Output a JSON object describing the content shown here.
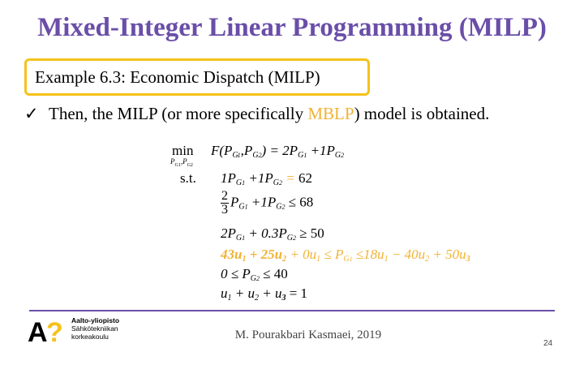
{
  "slide": {
    "title": "Mixed-Integer Linear Programming (MILP)",
    "example_label": "Example 6.3: Economic Dispatch (MILP)",
    "bullet": {
      "icon": "checkmark-icon",
      "pre": "Then, the MILP (or more specifically ",
      "highlight": "MBLP",
      "post": ") model is obtained."
    },
    "colors": {
      "title": "#6a4ea8",
      "box_border": "#f5c21b",
      "highlight": "#f2b233",
      "divider": "#6a4ea8"
    }
  },
  "model": {
    "min_label": "min",
    "min_sub": "P",
    "st_label": "s.t.",
    "objective_lhs": "F(P",
    "obj_eq": ") = 2P",
    "obj_plus": " +1P",
    "c1_a": "1P",
    "c1_b": " +1P",
    "c1_rel": " = ",
    "c1_rhs": "62",
    "c2_num": "2",
    "c2_den": "3",
    "c2_a": "P",
    "c2_b": " +1P",
    "c2_rel": " ≤ 68",
    "c3_a": "2P",
    "c3_b": " + 0.3P",
    "c3_rel": " ≥ 50",
    "c4": "43u",
    "c4_b": " + 25u",
    "c4_c": " + 0u",
    "c4_rel": " ≤ P",
    "c4_rhs": " ≤18u",
    "c4_rhs_b": " − 40u",
    "c4_rhs_c": " + 50u",
    "c5": "0 ≤ P",
    "c5_rel": " ≤ 40",
    "c6_a": "u",
    "c6_b": " + u",
    "c6_c": " + u",
    "c6_rel": " = 1",
    "sub_g1": "G",
    "sub_1": "1",
    "sub_2": "2",
    "sub_3": "3",
    "comma": ",",
    "sub_pg2": "G"
  },
  "footer": {
    "logo_lines": [
      "Aalto-yliopisto",
      "Sähkötekniikan",
      "korkeakoulu"
    ],
    "logo_mark": "A?",
    "author": "M. Pourakbari Kasmaei, 2019",
    "page_number": "24"
  }
}
